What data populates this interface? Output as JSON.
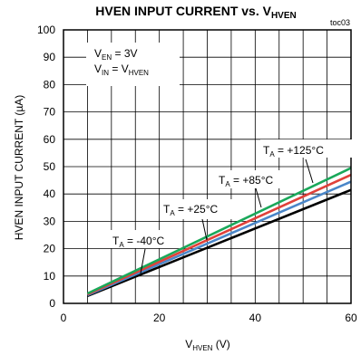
{
  "chart_data": {
    "type": "line",
    "title": "HVEN INPUT CURRENT vs. V",
    "title_sub": "HVEN",
    "figure_ref": "toc03",
    "xlabel": "V",
    "xlabel_sub": "HVEN",
    "xlabel_unit": " (V)",
    "ylabel": "HVEN INPUT CURRENT (µA)",
    "xlim": [
      0,
      60
    ],
    "ylim": [
      0,
      100
    ],
    "xticks": [
      "0",
      "20",
      "40",
      "60"
    ],
    "yticks": [
      "0",
      "10",
      "20",
      "30",
      "40",
      "50",
      "60",
      "70",
      "80",
      "90",
      "100"
    ],
    "grid": true,
    "conditions": [
      {
        "main": "V",
        "sub": "EN",
        "rest": " = 3V"
      },
      {
        "main": "V",
        "sub": "IN",
        "rest": " = V",
        "sub2": "HVEN"
      }
    ],
    "series": [
      {
        "name": "T = +125°C",
        "sub": "A",
        "main": "T",
        "rest": " = +125°C",
        "color": "#1aa85a",
        "x": [
          5,
          60
        ],
        "y": [
          3.6,
          49.5
        ]
      },
      {
        "name": "T = +85°C",
        "sub": "A",
        "main": "T",
        "rest": " = +85°C",
        "color": "#e0413a",
        "x": [
          5,
          60
        ],
        "y": [
          3.3,
          47.0
        ]
      },
      {
        "name": "T = +25°C",
        "sub": "A",
        "main": "T",
        "rest": " = +25°C",
        "color": "#4a86c8",
        "x": [
          5,
          60
        ],
        "y": [
          3.0,
          44.5
        ]
      },
      {
        "name": "T = -40°C",
        "sub": "A",
        "main": "T",
        "rest": " = -40°C",
        "color": "#000000",
        "x": [
          5,
          60
        ],
        "y": [
          2.7,
          41.5
        ]
      }
    ]
  }
}
